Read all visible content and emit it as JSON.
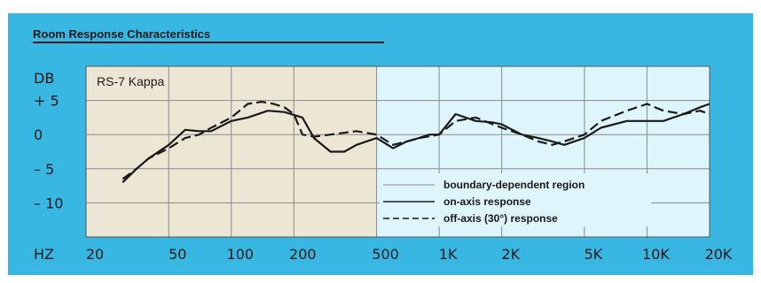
{
  "chart_data": {
    "type": "line",
    "title": "Room Response Characteristics",
    "label": "RS-7 Kappa",
    "xlabel": "HZ",
    "ylabel": "DB",
    "x_scale": "log",
    "xlim": [
      20,
      20000
    ],
    "ylim": [
      -15,
      10
    ],
    "x_ticks": [
      {
        "value": 20,
        "label": "20"
      },
      {
        "value": 50,
        "label": "50"
      },
      {
        "value": 100,
        "label": "100"
      },
      {
        "value": 200,
        "label": "200"
      },
      {
        "value": 500,
        "label": "500"
      },
      {
        "value": 1000,
        "label": "1K"
      },
      {
        "value": 2000,
        "label": "2K"
      },
      {
        "value": 5000,
        "label": "5K"
      },
      {
        "value": 10000,
        "label": "10K"
      },
      {
        "value": 20000,
        "label": "20K"
      }
    ],
    "y_ticks": [
      {
        "value": 5,
        "label": "+ 5"
      },
      {
        "value": 0,
        "label": "0"
      },
      {
        "value": -5,
        "label": "– 5"
      },
      {
        "value": -10,
        "label": "– 10"
      }
    ],
    "grid": true,
    "shaded_region": {
      "name": "boundary-dependent region",
      "x_range": [
        20,
        500
      ],
      "color": "#ece6d4"
    },
    "plot_bg_color": "#def5fc",
    "line_color": "#1a1a1a",
    "legend_position": "bottom-right",
    "series": [
      {
        "name": "on-axis response",
        "style": "solid",
        "x": [
          30,
          35,
          40,
          50,
          60,
          70,
          80,
          100,
          120,
          150,
          180,
          220,
          250,
          300,
          350,
          400,
          500,
          600,
          700,
          800,
          900,
          1000,
          1200,
          1500,
          1800,
          2000,
          2500,
          3000,
          3500,
          4000,
          5000,
          6000,
          8000,
          10000,
          12000,
          15000,
          18000,
          20000
        ],
        "y": [
          -7,
          -5,
          -3.5,
          -1.5,
          0.7,
          0.5,
          0.5,
          2,
          2.5,
          3.5,
          3.3,
          2.5,
          -0.5,
          -2.5,
          -2.5,
          -1.5,
          -0.5,
          -2,
          -1,
          -0.5,
          0,
          0,
          3,
          2,
          1.8,
          1.5,
          0,
          -0.5,
          -1,
          -1.5,
          -0.5,
          1,
          2,
          2,
          2,
          3,
          4,
          4.5
        ]
      },
      {
        "name": "off-axis (30°) response",
        "style": "dashed",
        "x": [
          30,
          35,
          40,
          50,
          60,
          70,
          80,
          100,
          120,
          140,
          160,
          180,
          200,
          220,
          250,
          300,
          400,
          500,
          600,
          700,
          800,
          1000,
          1200,
          1500,
          2000,
          2500,
          3000,
          3500,
          4000,
          5000,
          6000,
          8000,
          10000,
          12000,
          15000,
          18000,
          20000
        ],
        "y": [
          -6.5,
          -5,
          -3.5,
          -2,
          -0.5,
          0,
          1,
          2.5,
          4.5,
          4.8,
          4.5,
          4,
          3,
          0,
          -0.3,
          0,
          0.5,
          0,
          -1.5,
          -1,
          -0.5,
          0,
          2,
          2.5,
          1,
          0,
          -1,
          -1.5,
          -1,
          0,
          2,
          3.5,
          4.5,
          3.5,
          3,
          3.5,
          3
        ]
      }
    ]
  }
}
